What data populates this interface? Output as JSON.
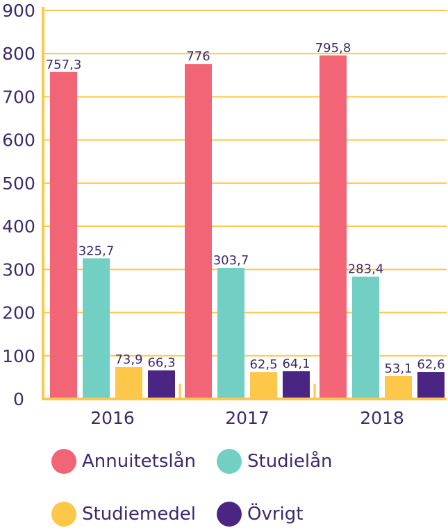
{
  "chart_data": {
    "type": "bar",
    "title": "",
    "xlabel": "",
    "ylabel": "",
    "ylim": [
      0,
      900
    ],
    "yticks": [
      "0",
      "100",
      "200",
      "300",
      "400",
      "500",
      "600",
      "700",
      "800",
      "900"
    ],
    "categories": [
      "2016",
      "2017",
      "2018"
    ],
    "series": [
      {
        "name": "Annuitetslån",
        "color": "#f26576",
        "values": [
          757.3,
          776,
          795.8
        ],
        "labels": [
          "757,3",
          "776",
          "795,8"
        ]
      },
      {
        "name": "Studielån",
        "color": "#72cfc3",
        "values": [
          325.7,
          303.7,
          283.4
        ],
        "labels": [
          "325,7",
          "303,7",
          "283,4"
        ]
      },
      {
        "name": "Studiemedel",
        "color": "#fdc84a",
        "values": [
          73.9,
          62.5,
          53.1
        ],
        "labels": [
          "73,9",
          "62,5",
          "53,1"
        ]
      },
      {
        "name": "Övrigt",
        "color": "#4b2583",
        "values": [
          66.3,
          64.1,
          62.6
        ],
        "labels": [
          "66,3",
          "64,1",
          "62,6"
        ]
      }
    ],
    "grid": true,
    "gridColor": "#fdc84a",
    "axisColor": "#fdc84a",
    "textColor": "#3c2a6b",
    "legend_position": "bottom"
  }
}
